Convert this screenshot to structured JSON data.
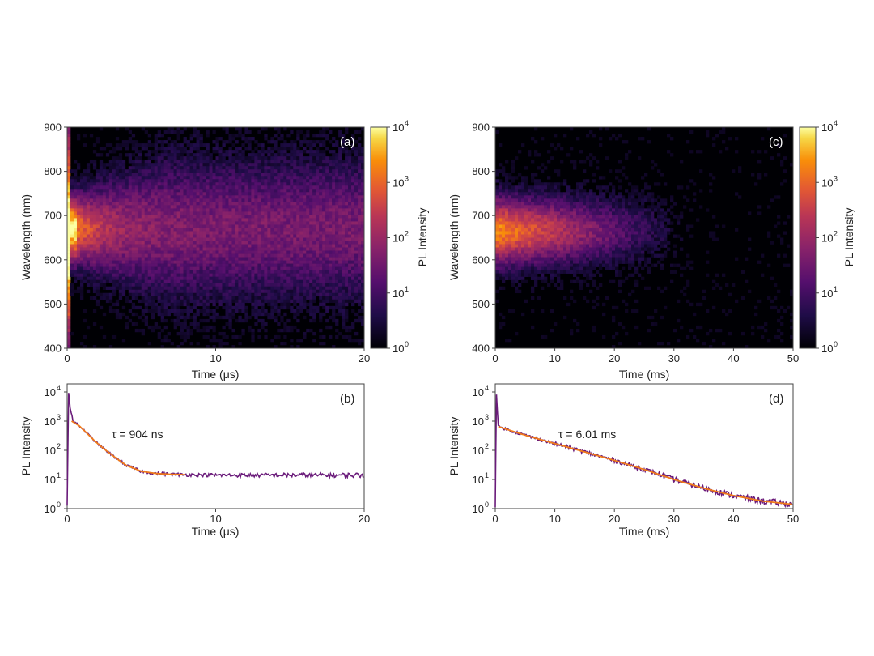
{
  "chart_data": [
    {
      "panel_label": "(a)",
      "type": "heatmap",
      "xlabel": "Time (μs)",
      "ylabel": "Wavelength (nm)",
      "xlim": [
        0,
        20
      ],
      "ylim": [
        400,
        900
      ],
      "x_ticks": [
        "0",
        "10",
        "20"
      ],
      "y_ticks": [
        "400",
        "500",
        "600",
        "700",
        "800",
        "900"
      ],
      "colorbar": {
        "label": "PL Intensity",
        "scale": "log",
        "ticks": [
          "10",
          "10",
          "10",
          "10",
          "10"
        ],
        "tick_exponents": [
          "0",
          "1",
          "2",
          "3",
          "4"
        ],
        "colormap": "inferno"
      },
      "emission_center_nm": 670,
      "emission_decay": "fast peak then long tail",
      "background": "#000004"
    },
    {
      "panel_label": "(b)",
      "type": "line",
      "xlabel": "Time (μs)",
      "ylabel": "PL Intensity",
      "xlim": [
        0,
        20
      ],
      "ylim_exponents": [
        0,
        4
      ],
      "scale_y": "log",
      "x_ticks": [
        "0",
        "10",
        "20"
      ],
      "y_ticks": [
        "10",
        "10",
        "10",
        "10",
        "10"
      ],
      "y_tick_exponents": [
        "0",
        "1",
        "2",
        "3",
        "4"
      ],
      "annotation": "τ = 904 ns",
      "series": [
        {
          "role": "data",
          "color": "#6a1b7a",
          "x": [
            0,
            0.1,
            0.2,
            0.4,
            0.8,
            1.2,
            1.6,
            2.0,
            2.5,
            3.0,
            3.5,
            4.0,
            4.5,
            5.0,
            6.0,
            7.0,
            8.0,
            10.0,
            12.0,
            14.0,
            16.0,
            18.0,
            20.0
          ],
          "y": [
            1.2,
            10000,
            3000,
            1000,
            700,
            450,
            280,
            180,
            110,
            70,
            45,
            30,
            24,
            19,
            16,
            15,
            14.5,
            14,
            14,
            14,
            14,
            14,
            14
          ]
        },
        {
          "role": "fit",
          "color": "#f07a1a",
          "x": [
            0.3,
            0.8,
            1.2,
            1.6,
            2.0,
            2.5,
            3.0,
            3.5,
            4.0,
            4.5,
            5.0,
            6.0,
            7.0,
            8.0
          ],
          "y": [
            1000,
            700,
            450,
            280,
            180,
            110,
            70,
            45,
            30,
            24,
            19,
            16,
            15,
            14.5
          ]
        }
      ]
    },
    {
      "panel_label": "(c)",
      "type": "heatmap",
      "xlabel": "Time (ms)",
      "ylabel": "Wavelength (nm)",
      "xlim": [
        0,
        50
      ],
      "ylim": [
        400,
        900
      ],
      "x_ticks": [
        "0",
        "10",
        "20",
        "30",
        "40",
        "50"
      ],
      "y_ticks": [
        "400",
        "500",
        "600",
        "700",
        "800",
        "900"
      ],
      "colorbar": {
        "label": "PL Intensity",
        "scale": "log",
        "ticks": [
          "10",
          "10",
          "10",
          "10",
          "10"
        ],
        "tick_exponents": [
          "0",
          "1",
          "2",
          "3",
          "4"
        ],
        "colormap": "inferno"
      },
      "emission_center_nm": 665,
      "emission_decay": "single exponential",
      "background": "#000004"
    },
    {
      "panel_label": "(d)",
      "type": "line",
      "xlabel": "Time (ms)",
      "ylabel": "PL Intensity",
      "xlim": [
        0,
        50
      ],
      "ylim_exponents": [
        0,
        4
      ],
      "scale_y": "log",
      "x_ticks": [
        "0",
        "10",
        "20",
        "30",
        "40",
        "50"
      ],
      "y_ticks": [
        "10",
        "10",
        "10",
        "10",
        "10"
      ],
      "y_tick_exponents": [
        "0",
        "1",
        "2",
        "3",
        "4"
      ],
      "annotation": "τ = 6.01 ms",
      "series": [
        {
          "role": "data",
          "color": "#6a1b7a",
          "x": [
            0,
            0.2,
            0.5,
            5,
            10,
            15,
            20,
            25,
            30,
            35,
            40,
            45,
            50
          ],
          "y": [
            1.2,
            9000,
            650,
            330,
            170,
            88,
            45,
            22,
            10,
            5,
            2.8,
            1.8,
            1.4
          ]
        },
        {
          "role": "fit",
          "color": "#f07a1a",
          "x": [
            0.5,
            5,
            10,
            15,
            20,
            25,
            30,
            35,
            40,
            45,
            50
          ],
          "y": [
            650,
            330,
            170,
            88,
            45,
            22,
            10,
            5,
            2.8,
            1.8,
            1.4
          ]
        }
      ]
    }
  ]
}
